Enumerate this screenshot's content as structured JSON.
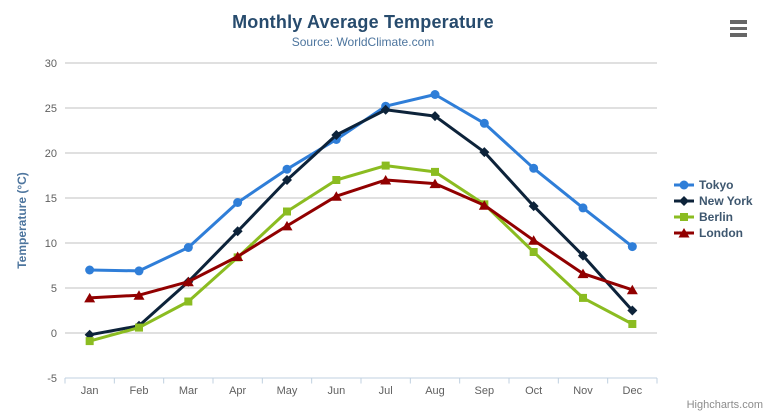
{
  "chart": {
    "title": "Monthly Average Temperature",
    "subtitle": "Source: WorldClimate.com",
    "credits": "Highcharts.com",
    "context_menu_icon": "hamburger-icon"
  },
  "colors": {
    "title": "#274b6d",
    "subtitle": "#4d759e",
    "axis_label": "#606060",
    "axis_title": "#4d759e",
    "grid": "#C0C0C0",
    "axis_line": "#C0D0E0",
    "legend_text": "#3E576F",
    "credits": "#8c8c8c",
    "menu_icon": "#666666"
  },
  "chart_data": {
    "type": "line",
    "title": "Monthly Average Temperature",
    "subtitle": "Source: WorldClimate.com",
    "xlabel": "",
    "ylabel": "Temperature (°C)",
    "ylim": [
      -5,
      30
    ],
    "y_ticks": [
      -5,
      0,
      5,
      10,
      15,
      20,
      25,
      30
    ],
    "grid": true,
    "legend_position": "right",
    "categories": [
      "Jan",
      "Feb",
      "Mar",
      "Apr",
      "May",
      "Jun",
      "Jul",
      "Aug",
      "Sep",
      "Oct",
      "Nov",
      "Dec"
    ],
    "series": [
      {
        "name": "Tokyo",
        "color": "#2f7ed8",
        "marker": "circle",
        "values": [
          7.0,
          6.9,
          9.5,
          14.5,
          18.2,
          21.5,
          25.2,
          26.5,
          23.3,
          18.3,
          13.9,
          9.6
        ]
      },
      {
        "name": "New York",
        "color": "#0d233a",
        "marker": "diamond",
        "values": [
          -0.2,
          0.8,
          5.7,
          11.3,
          17.0,
          22.0,
          24.8,
          24.1,
          20.1,
          14.1,
          8.6,
          2.5
        ]
      },
      {
        "name": "Berlin",
        "color": "#8bbc21",
        "marker": "square",
        "values": [
          -0.9,
          0.6,
          3.5,
          8.4,
          13.5,
          17.0,
          18.6,
          17.9,
          14.3,
          9.0,
          3.9,
          1.0
        ]
      },
      {
        "name": "London",
        "color": "#910000",
        "marker": "triangle",
        "values": [
          3.9,
          4.2,
          5.7,
          8.5,
          11.9,
          15.2,
          17.0,
          16.6,
          14.2,
          10.3,
          6.6,
          4.8
        ]
      }
    ]
  }
}
